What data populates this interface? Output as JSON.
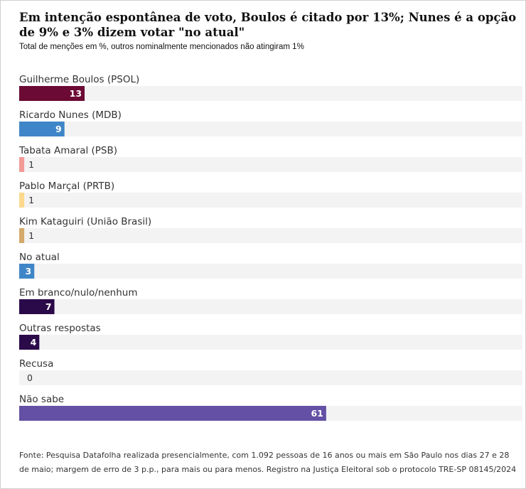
{
  "title": "Em intenção espontânea de voto, Boulos é citado por 13%; Nunes é a opção de 9% e 3% dizem votar \"no atual\"",
  "subtitle": "Total de menções em %, outros nominalmente mencionados não atingiram 1%",
  "footnote": "Fonte: Pesquisa Datafolha realizada presencialmente, com 1.092 pessoas de 16 anos ou mais em São Paulo nos dias 27 e 28 de maio; margem de erro de 3 p.p., para mais ou para menos. Registro na Justiça Eleitoral sob o protocolo TRE-SP 08145/2024",
  "chart_data": {
    "type": "bar",
    "orientation": "horizontal",
    "xlim": [
      0,
      100
    ],
    "grid": false,
    "categories": [
      "Guilherme Boulos (PSOL)",
      "Ricardo Nunes (MDB)",
      "Tabata Amaral (PSB)",
      "Pablo Marçal (PRTB)",
      "Kim Kataguiri (União Brasil)",
      "No atual",
      "Em branco/nulo/nenhum",
      "Outras respostas",
      "Recusa",
      "Não sabe"
    ],
    "values": [
      13,
      9,
      1,
      1,
      1,
      3,
      7,
      4,
      0,
      61
    ],
    "colors": [
      "#6b0a34",
      "#3f86c8",
      "#f29a96",
      "#fcd98c",
      "#d4a96a",
      "#3f86c8",
      "#2b0a4a",
      "#2b0a4a",
      "#2b0a4a",
      "#6450a4"
    ],
    "track_color": "#f3f3f3"
  }
}
